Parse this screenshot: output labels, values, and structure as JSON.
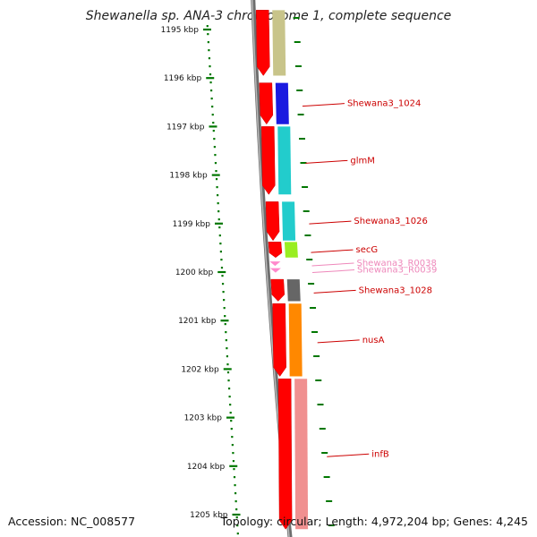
{
  "title": "Shewanella sp. ANA-3 chromosome 1, complete sequence",
  "accession": "Accession: NC_008577",
  "summary": "Topology: circular; Length: 4,972,204 bp; Genes: 4,245",
  "ticks": [
    {
      "kbp": 1195,
      "label": "1195 kbp"
    },
    {
      "kbp": 1196,
      "label": "1196 kbp"
    },
    {
      "kbp": 1197,
      "label": "1197 kbp"
    },
    {
      "kbp": 1198,
      "label": "1198 kbp"
    },
    {
      "kbp": 1199,
      "label": "1199 kbp"
    },
    {
      "kbp": 1200,
      "label": "1200 kbp"
    },
    {
      "kbp": 1201,
      "label": "1201 kbp"
    },
    {
      "kbp": 1202,
      "label": "1202 kbp"
    },
    {
      "kbp": 1203,
      "label": "1203 kbp"
    },
    {
      "kbp": 1204,
      "label": "1204 kbp"
    },
    {
      "kbp": 1205,
      "label": "1205 kbp"
    }
  ],
  "genes": [
    {
      "label": "",
      "start": 1194.6,
      "end": 1195.95,
      "color": "#c8c48a",
      "type": "gene"
    },
    {
      "label": "Shewana3_1024",
      "start": 1196.1,
      "end": 1196.95,
      "color": "#1a1ae0",
      "type": "gene",
      "labelColor": "#cc0000"
    },
    {
      "label": "glmM",
      "start": 1197.0,
      "end": 1198.4,
      "color": "#22cccc",
      "type": "gene",
      "labelColor": "#cc0000"
    },
    {
      "label": "Shewana3_1026",
      "start": 1198.55,
      "end": 1199.35,
      "color": "#22cccc",
      "type": "gene",
      "labelColor": "#cc0000"
    },
    {
      "label": "secG",
      "start": 1199.38,
      "end": 1199.7,
      "color": "#99ee22",
      "type": "gene",
      "labelColor": "#cc0000"
    },
    {
      "label": "Shewana3_R0038",
      "start": 1199.78,
      "end": 1199.85,
      "color": "#ff88cc",
      "type": "rna",
      "labelColor": "#ee88bb"
    },
    {
      "label": "Shewana3_R0039",
      "start": 1199.92,
      "end": 1199.99,
      "color": "#ff88cc",
      "type": "rna",
      "labelColor": "#ee88bb"
    },
    {
      "label": "Shewana3_1028",
      "start": 1200.15,
      "end": 1200.6,
      "color": "#666666",
      "type": "gene",
      "labelColor": "#cc0000"
    },
    {
      "label": "nusA",
      "start": 1200.65,
      "end": 1202.15,
      "color": "#ff8800",
      "type": "gene",
      "labelColor": "#cc0000"
    },
    {
      "label": "infB",
      "start": 1202.2,
      "end": 1205.3,
      "color": "#f09090",
      "type": "gene",
      "labelColor": "#cc0000"
    }
  ],
  "colors": {
    "cds": "#ff0000",
    "tick": "#007700",
    "backbone": "#777777"
  }
}
